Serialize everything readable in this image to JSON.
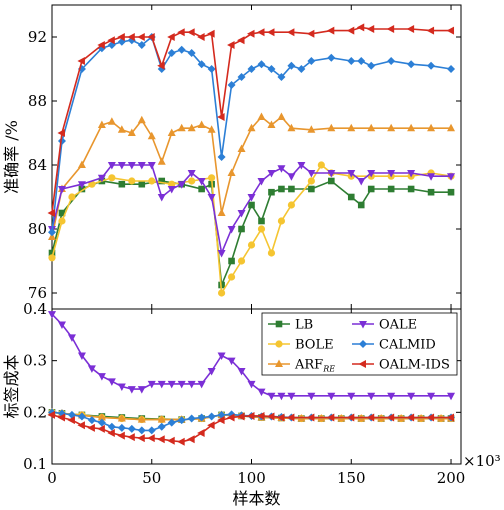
{
  "chart_data": [
    {
      "type": "line",
      "ylabel": "准确率 /%",
      "ylim": [
        75,
        94
      ],
      "yticks": [
        76,
        80,
        84,
        88,
        92
      ],
      "series": [
        {
          "name": "LB",
          "color": "#2e7d32",
          "marker": "square",
          "x": [
            0,
            5,
            15,
            25,
            35,
            45,
            55,
            65,
            75,
            80,
            85,
            90,
            95,
            100,
            105,
            110,
            115,
            120,
            130,
            140,
            150,
            155,
            160,
            170,
            180,
            190,
            200
          ],
          "y": [
            78.5,
            81,
            82.5,
            83,
            82.8,
            82.8,
            83,
            82.8,
            82.5,
            82.8,
            76.5,
            78,
            80,
            81.5,
            80.5,
            82.3,
            82.5,
            82.5,
            82.5,
            83,
            82,
            81.5,
            82.5,
            82.5,
            82.5,
            82.3,
            82.3
          ]
        },
        {
          "name": "BOLE",
          "color": "#f5c531",
          "marker": "circle",
          "x": [
            0,
            5,
            10,
            20,
            30,
            40,
            50,
            60,
            70,
            80,
            85,
            90,
            95,
            100,
            105,
            110,
            115,
            120,
            130,
            135,
            140,
            150,
            160,
            170,
            180,
            190,
            200
          ],
          "y": [
            78.2,
            80.5,
            82,
            82.8,
            83.2,
            83,
            83,
            82.8,
            83,
            83.2,
            76,
            77,
            78,
            79,
            80,
            78.5,
            80.5,
            81.5,
            83,
            84,
            83.5,
            83.3,
            83.3,
            83.3,
            83.3,
            83.5,
            83.3
          ]
        },
        {
          "name": "ARF_RE",
          "color": "#e8962e",
          "marker": "triangle-up",
          "x": [
            0,
            5,
            15,
            25,
            30,
            35,
            40,
            45,
            50,
            55,
            60,
            65,
            70,
            75,
            80,
            85,
            90,
            95,
            100,
            105,
            110,
            115,
            120,
            130,
            140,
            150,
            160,
            170,
            180,
            190,
            200
          ],
          "y": [
            79.5,
            82.5,
            84,
            86.5,
            86.7,
            86.2,
            86,
            86.8,
            85.8,
            84.2,
            86,
            86.3,
            86.3,
            86.5,
            86.2,
            81,
            83.5,
            85,
            86.3,
            87,
            86.5,
            87,
            86.3,
            86.2,
            86.3,
            86.3,
            86.3,
            86.3,
            86.3,
            86.3,
            86.3
          ]
        },
        {
          "name": "OALE",
          "color": "#7b2fd6",
          "marker": "triangle-down",
          "x": [
            0,
            5,
            15,
            25,
            30,
            35,
            40,
            45,
            50,
            55,
            60,
            65,
            70,
            75,
            80,
            85,
            90,
            95,
            100,
            105,
            110,
            115,
            120,
            125,
            130,
            140,
            150,
            155,
            160,
            170,
            180,
            190,
            200
          ],
          "y": [
            80,
            82.5,
            82.8,
            83.2,
            84,
            84,
            84,
            84,
            84,
            82,
            82.5,
            82.8,
            83.5,
            83,
            82,
            78.5,
            80,
            81,
            82,
            83,
            83.5,
            83.8,
            83.3,
            84,
            83.5,
            83.5,
            83.5,
            83,
            83.5,
            83.5,
            83.5,
            83.3,
            83.3
          ]
        },
        {
          "name": "CALMID",
          "color": "#2c7fd6",
          "marker": "diamond",
          "x": [
            0,
            5,
            15,
            25,
            30,
            35,
            40,
            45,
            50,
            55,
            60,
            65,
            70,
            75,
            80,
            85,
            90,
            95,
            100,
            105,
            110,
            115,
            120,
            125,
            130,
            140,
            150,
            155,
            160,
            170,
            180,
            190,
            200
          ],
          "y": [
            79.8,
            85.5,
            90,
            91.3,
            91.5,
            91.7,
            91.8,
            91.5,
            92,
            90,
            91,
            91.2,
            91,
            90.3,
            90,
            84.5,
            89,
            89.5,
            90,
            90.3,
            90,
            89.5,
            90.2,
            90,
            90.5,
            90.7,
            90.5,
            90.5,
            90.2,
            90.5,
            90.3,
            90.2,
            90
          ]
        },
        {
          "name": "OALM-IDS",
          "color": "#d42a1e",
          "marker": "triangle-left",
          "x": [
            0,
            5,
            15,
            25,
            30,
            35,
            40,
            45,
            50,
            55,
            60,
            65,
            70,
            75,
            80,
            85,
            90,
            95,
            100,
            105,
            110,
            120,
            130,
            140,
            150,
            155,
            160,
            170,
            180,
            190,
            200
          ],
          "y": [
            81,
            86,
            90.5,
            91.5,
            91.8,
            92,
            92,
            92,
            92,
            90.2,
            92,
            92.3,
            92.3,
            92,
            92.2,
            87,
            91.5,
            91.8,
            92.2,
            92.3,
            92.3,
            92.3,
            92.2,
            92.4,
            92.4,
            92.6,
            92.5,
            92.5,
            92.5,
            92.4,
            92.4
          ]
        }
      ]
    },
    {
      "type": "line",
      "xlabel": "样本数",
      "ylabel": "标签成本",
      "xlim": [
        0,
        205
      ],
      "ylim": [
        0.1,
        0.4
      ],
      "xticks": [
        0,
        50,
        100,
        150,
        200
      ],
      "yticks": [
        0.1,
        0.2,
        0.3,
        0.4
      ],
      "x_multiplier": "×10³",
      "legend_position": "top-right",
      "legend_rows": [
        [
          "LB",
          "OALE"
        ],
        [
          "BOLE",
          "CALMID"
        ],
        [
          "ARF_RE",
          "OALM-IDS"
        ]
      ],
      "series": [
        {
          "name": "LB",
          "color": "#2e7d32",
          "marker": "square",
          "x": [
            0,
            5,
            15,
            25,
            35,
            45,
            55,
            65,
            75,
            85,
            95,
            105,
            115,
            125,
            135,
            145,
            155,
            165,
            175,
            185,
            195,
            200
          ],
          "y": [
            0.2,
            0.198,
            0.195,
            0.192,
            0.19,
            0.188,
            0.187,
            0.186,
            0.188,
            0.195,
            0.193,
            0.19,
            0.189,
            0.188,
            0.188,
            0.188,
            0.188,
            0.188,
            0.188,
            0.188,
            0.188,
            0.188
          ]
        },
        {
          "name": "BOLE",
          "color": "#f5c531",
          "marker": "circle",
          "x": [
            0,
            5,
            15,
            25,
            35,
            45,
            55,
            65,
            75,
            85,
            95,
            105,
            115,
            125,
            135,
            145,
            155,
            165,
            175,
            185,
            195,
            200
          ],
          "y": [
            0.2,
            0.198,
            0.195,
            0.19,
            0.188,
            0.186,
            0.186,
            0.186,
            0.188,
            0.195,
            0.194,
            0.19,
            0.189,
            0.188,
            0.188,
            0.188,
            0.188,
            0.188,
            0.188,
            0.188,
            0.188,
            0.188
          ]
        },
        {
          "name": "ARF_RE",
          "color": "#e8962e",
          "marker": "triangle-up",
          "x": [
            0,
            5,
            15,
            25,
            35,
            45,
            55,
            65,
            75,
            85,
            95,
            105,
            115,
            125,
            135,
            145,
            155,
            165,
            175,
            185,
            195,
            200
          ],
          "y": [
            0.2,
            0.198,
            0.194,
            0.19,
            0.188,
            0.186,
            0.186,
            0.186,
            0.188,
            0.195,
            0.193,
            0.19,
            0.189,
            0.188,
            0.188,
            0.188,
            0.188,
            0.188,
            0.188,
            0.188,
            0.188,
            0.188
          ]
        },
        {
          "name": "OALE",
          "color": "#7b2fd6",
          "marker": "triangle-down",
          "x": [
            0,
            5,
            10,
            15,
            20,
            25,
            30,
            35,
            40,
            45,
            50,
            55,
            60,
            65,
            70,
            75,
            80,
            85,
            90,
            95,
            100,
            105,
            110,
            115,
            120,
            130,
            140,
            150,
            160,
            170,
            180,
            190,
            200
          ],
          "y": [
            0.39,
            0.37,
            0.345,
            0.31,
            0.285,
            0.27,
            0.26,
            0.25,
            0.245,
            0.245,
            0.255,
            0.255,
            0.255,
            0.255,
            0.255,
            0.255,
            0.28,
            0.31,
            0.3,
            0.28,
            0.255,
            0.24,
            0.232,
            0.232,
            0.232,
            0.232,
            0.232,
            0.232,
            0.232,
            0.232,
            0.232,
            0.232,
            0.232
          ]
        },
        {
          "name": "CALMID",
          "color": "#2c7fd6",
          "marker": "diamond",
          "x": [
            0,
            5,
            10,
            15,
            20,
            25,
            30,
            35,
            40,
            45,
            50,
            55,
            60,
            65,
            70,
            75,
            80,
            85,
            90,
            95,
            100,
            105,
            110,
            115,
            120,
            130,
            140,
            150,
            160,
            170,
            180,
            190,
            200
          ],
          "y": [
            0.2,
            0.198,
            0.195,
            0.192,
            0.185,
            0.18,
            0.172,
            0.17,
            0.168,
            0.165,
            0.165,
            0.172,
            0.18,
            0.185,
            0.188,
            0.19,
            0.192,
            0.195,
            0.196,
            0.194,
            0.193,
            0.192,
            0.192,
            0.191,
            0.19,
            0.19,
            0.19,
            0.19,
            0.19,
            0.19,
            0.19,
            0.19,
            0.19
          ]
        },
        {
          "name": "OALM-IDS",
          "color": "#d42a1e",
          "marker": "triangle-left",
          "x": [
            0,
            5,
            10,
            15,
            20,
            25,
            30,
            35,
            40,
            45,
            50,
            55,
            60,
            65,
            70,
            75,
            80,
            85,
            90,
            95,
            100,
            105,
            110,
            115,
            120,
            130,
            140,
            150,
            160,
            170,
            180,
            190,
            200
          ],
          "y": [
            0.195,
            0.19,
            0.185,
            0.175,
            0.17,
            0.168,
            0.16,
            0.155,
            0.152,
            0.15,
            0.15,
            0.148,
            0.145,
            0.143,
            0.148,
            0.16,
            0.175,
            0.185,
            0.19,
            0.192,
            0.193,
            0.193,
            0.192,
            0.19,
            0.19,
            0.19,
            0.19,
            0.19,
            0.19,
            0.19,
            0.19,
            0.19,
            0.19
          ]
        }
      ]
    }
  ]
}
